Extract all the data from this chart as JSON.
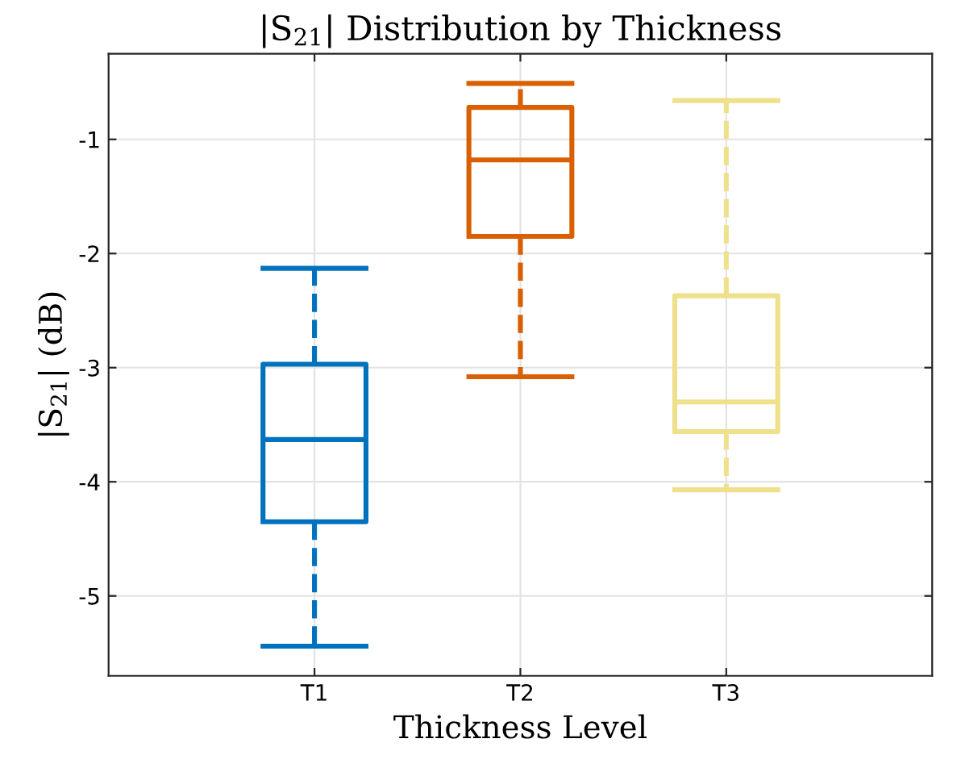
{
  "chart_data": {
    "type": "box",
    "title": "|S$_{21}$| Distribution by Thickness",
    "xlabel": "Thickness Level",
    "ylabel": "|S$_{21}$| (dB)",
    "categories": [
      "T1",
      "T2",
      "T3"
    ],
    "colors": [
      "#0072bd",
      "#d95f02",
      "#efe08c"
    ],
    "boxes": [
      {
        "low": -5.44,
        "q1": -4.35,
        "median": -3.63,
        "q3": -2.97,
        "high": -2.13
      },
      {
        "low": -3.08,
        "q1": -1.85,
        "median": -1.18,
        "q3": -0.72,
        "high": -0.51
      },
      {
        "low": -4.07,
        "q1": -3.56,
        "median": -3.3,
        "q3": -2.37,
        "high": -0.66
      }
    ],
    "ylim": [
      -5.7,
      -0.25
    ],
    "yticks": [
      -5,
      -4,
      -3,
      -2,
      -1
    ],
    "grid": true,
    "line_style": "dashed"
  }
}
